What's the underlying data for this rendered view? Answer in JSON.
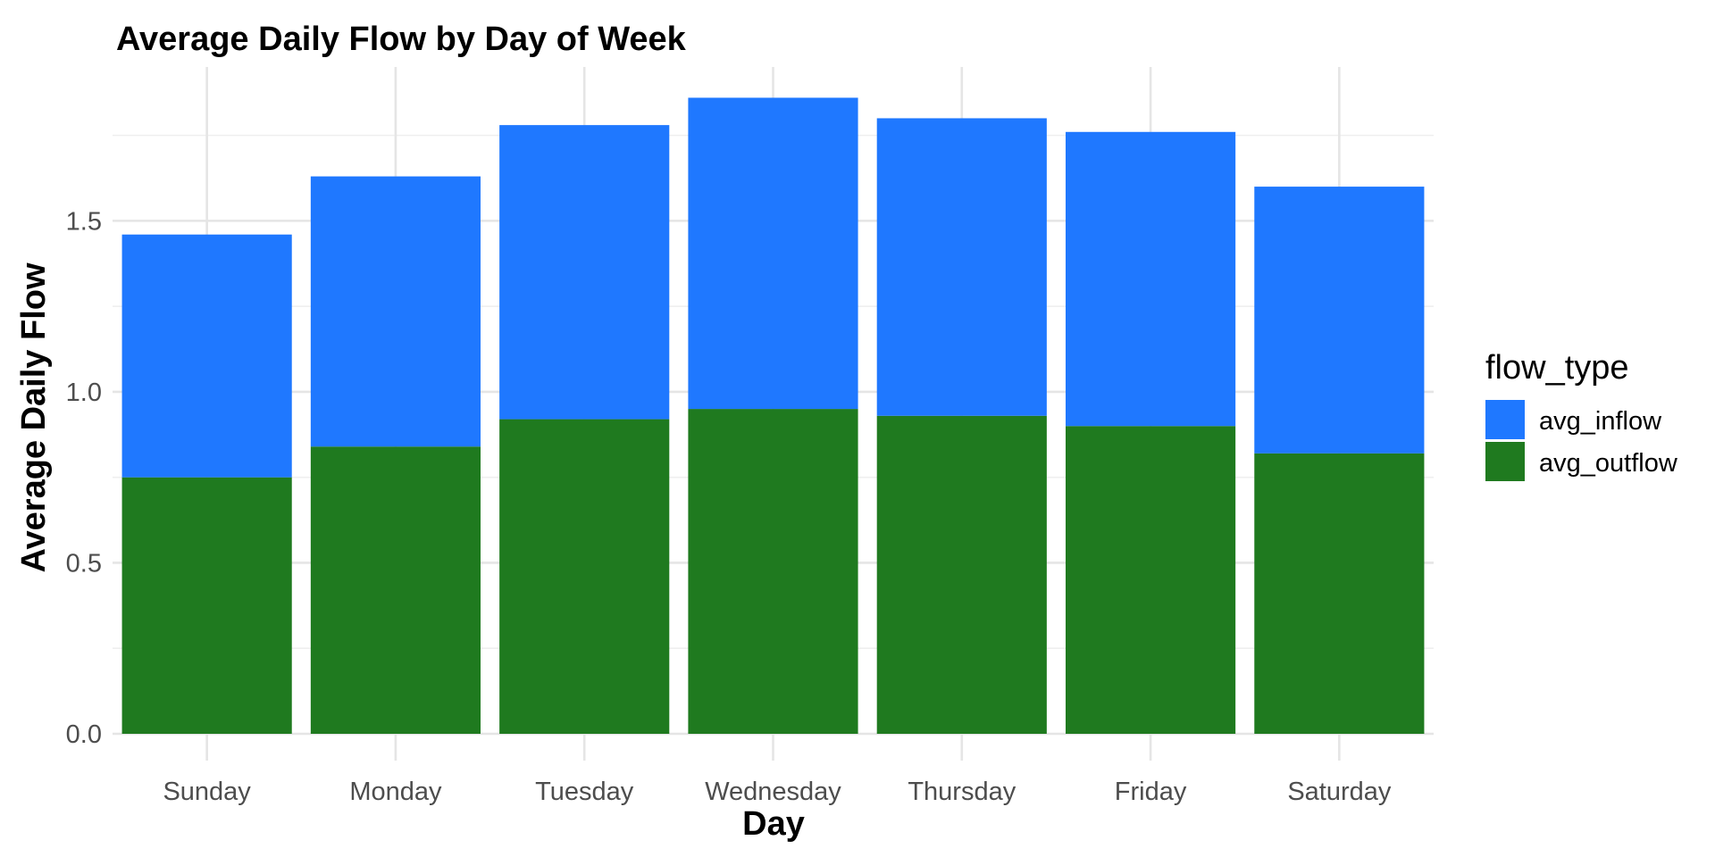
{
  "chart_data": {
    "type": "bar",
    "stacked": true,
    "title": "Average Daily Flow by Day of Week",
    "xlabel": "Day",
    "ylabel": "Average Daily Flow",
    "categories": [
      "Sunday",
      "Monday",
      "Tuesday",
      "Wednesday",
      "Thursday",
      "Friday",
      "Saturday"
    ],
    "series": [
      {
        "name": "avg_outflow",
        "color": "#1f7a1f",
        "values": [
          0.75,
          0.84,
          0.92,
          0.95,
          0.93,
          0.9,
          0.82
        ]
      },
      {
        "name": "avg_inflow",
        "color": "#1f78ff",
        "values": [
          0.71,
          0.79,
          0.86,
          0.91,
          0.87,
          0.86,
          0.78
        ]
      }
    ],
    "ylim": [
      0,
      1.95
    ],
    "yticks": [
      0.0,
      0.5,
      1.0,
      1.5
    ],
    "ytick_labels": [
      "0.0",
      "0.5",
      "1.0",
      "1.5"
    ],
    "grid": true,
    "legend": {
      "title": "flow_type",
      "placement": "right",
      "entries": [
        {
          "label": "avg_inflow",
          "color": "#1f78ff"
        },
        {
          "label": "avg_outflow",
          "color": "#1f7a1f"
        }
      ]
    }
  }
}
